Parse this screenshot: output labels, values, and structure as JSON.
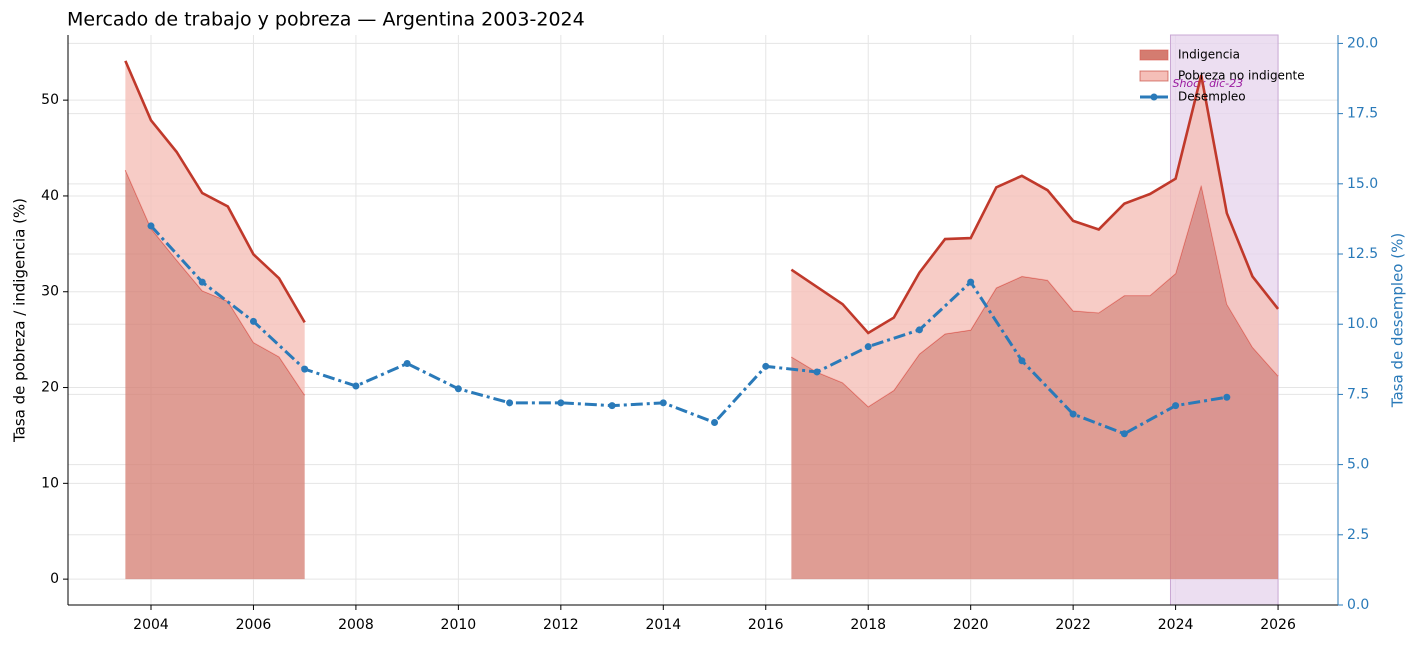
{
  "chart_data": {
    "type": "area-line",
    "title": "Mercado de trabajo y pobreza — Argentina 2003-2024",
    "y_label": "Tasa de pobreza / indigencia (%)",
    "y2_label": "Tasa de desempleo (%)",
    "xlim": [
      2002.38,
      2027.17
    ],
    "xticks": [
      2004,
      2006,
      2008,
      2010,
      2012,
      2014,
      2016,
      2018,
      2020,
      2022,
      2024,
      2026
    ],
    "ylim": [
      -2.7,
      56.8
    ],
    "yticks": [
      0,
      10,
      20,
      30,
      40,
      50
    ],
    "y2lim": [
      0,
      20.3
    ],
    "y2ticks": [
      {
        "value": 0,
        "label": "0.0"
      },
      2.5,
      {
        "value": 5,
        "label": "5.0"
      },
      7.5,
      {
        "value": 10,
        "label": "10.0"
      },
      12.5,
      {
        "value": 15,
        "label": "15.0"
      },
      17.5,
      {
        "value": 20,
        "label": "20.0"
      }
    ],
    "grid": true,
    "legend": "upper right",
    "span": {
      "x": [
        2023.9,
        2026
      ],
      "label": "Shock dic-23",
      "color": "#e6d3ec",
      "label_color": "#9b1ba0"
    },
    "series": [
      {
        "name": "Indigencia",
        "kind": "stacked-area",
        "color": "#d47c70",
        "edge": "#d9584f",
        "x": [
          2003.5,
          2004,
          2004.5,
          2005,
          2005.5,
          2006,
          2006.5,
          2007,
          2007.5,
          2016,
          2016.5,
          2017,
          2017.5,
          2018,
          2018.5,
          2019,
          2019.5,
          2020,
          2020.5,
          2021,
          2021.5,
          2022,
          2022.5,
          2023,
          2023.5,
          2024,
          2024.5,
          2025,
          2025.5,
          2026
        ],
        "values": [
          42.7,
          36.6,
          33.3,
          30.1,
          29.0,
          24.7,
          23.2,
          19.2,
          null,
          null,
          23.2,
          21.6,
          20.5,
          18.0,
          19.7,
          23.5,
          25.6,
          26.0,
          30.4,
          31.6,
          31.2,
          28.0,
          27.8,
          29.6,
          29.6,
          31.9,
          41.1,
          28.7,
          24.2,
          21.2
        ]
      },
      {
        "name": "Pobreza no indigente",
        "kind": "stacked-area",
        "color": "#f5bfb8",
        "edge": "#c0392b",
        "x": [
          2003.5,
          2004,
          2004.5,
          2005,
          2005.5,
          2006,
          2006.5,
          2007,
          2007.5,
          2016,
          2016.5,
          2017,
          2017.5,
          2018,
          2018.5,
          2019,
          2019.5,
          2020,
          2020.5,
          2021,
          2021.5,
          2022,
          2022.5,
          2023,
          2023.5,
          2024,
          2024.5,
          2025,
          2025.5,
          2026
        ],
        "values": [
          11.4,
          11.3,
          11.3,
          10.2,
          9.9,
          9.2,
          8.2,
          7.6,
          null,
          null,
          9.1,
          8.9,
          8.2,
          7.7,
          7.6,
          8.5,
          9.9,
          9.6,
          10.5,
          10.5,
          9.4,
          9.4,
          8.7,
          9.6,
          10.6,
          9.9,
          11.5,
          9.5,
          7.4,
          7.0
        ]
      },
      {
        "name": "Desempleo",
        "kind": "line",
        "color": "#2a7ab9",
        "axis": "y2",
        "x": [
          2004,
          2005,
          2006,
          2007,
          2008,
          2009,
          2010,
          2011,
          2012,
          2013,
          2014,
          2015,
          2016,
          2017,
          2018,
          2019,
          2020,
          2021,
          2022,
          2023,
          2024,
          2025
        ],
        "values": [
          13.5,
          11.5,
          10.1,
          8.4,
          7.8,
          8.6,
          7.7,
          7.2,
          7.2,
          7.1,
          7.2,
          6.5,
          8.5,
          8.3,
          9.2,
          9.8,
          11.5,
          8.7,
          6.8,
          6.1,
          7.1,
          7.4
        ]
      }
    ]
  }
}
